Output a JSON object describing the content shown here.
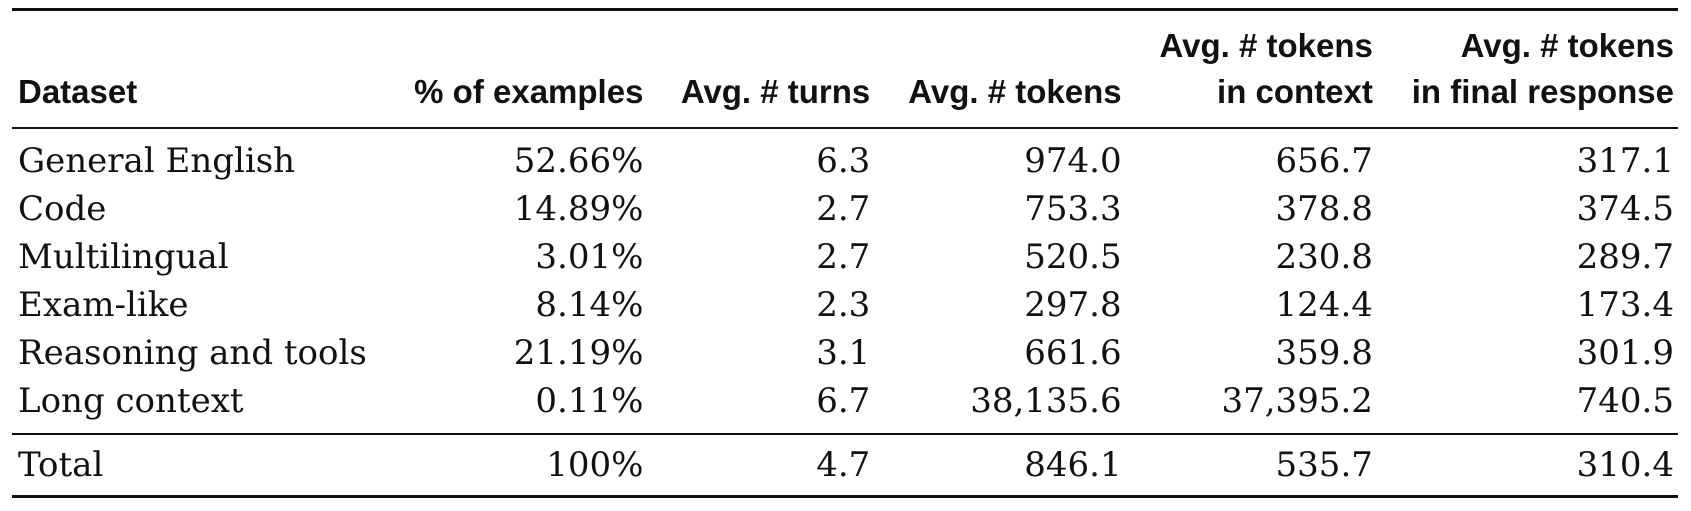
{
  "headers": {
    "dataset": "Dataset",
    "pct_examples": "% of examples",
    "avg_turns": "Avg. # turns",
    "avg_tokens": "Avg. # tokens",
    "avg_tokens_context": [
      "Avg. # tokens",
      "in context"
    ],
    "avg_tokens_final": [
      "Avg. # tokens",
      "in final response"
    ]
  },
  "rows": [
    {
      "dataset": "General English",
      "pct": "52.66%",
      "turns": "6.3",
      "tokens": "974.0",
      "context": "656.7",
      "final": "317.1"
    },
    {
      "dataset": "Code",
      "pct": "14.89%",
      "turns": "2.7",
      "tokens": "753.3",
      "context": "378.8",
      "final": "374.5"
    },
    {
      "dataset": "Multilingual",
      "pct": "3.01%",
      "turns": "2.7",
      "tokens": "520.5",
      "context": "230.8",
      "final": "289.7"
    },
    {
      "dataset": "Exam-like",
      "pct": "8.14%",
      "turns": "2.3",
      "tokens": "297.8",
      "context": "124.4",
      "final": "173.4"
    },
    {
      "dataset": "Reasoning and tools",
      "pct": "21.19%",
      "turns": "3.1",
      "tokens": "661.6",
      "context": "359.8",
      "final": "301.9"
    },
    {
      "dataset": "Long context",
      "pct": "0.11%",
      "turns": "6.7",
      "tokens": "38,135.6",
      "context": "37,395.2",
      "final": "740.5"
    }
  ],
  "total": {
    "dataset": "Total",
    "pct": "100%",
    "turns": "4.7",
    "tokens": "846.1",
    "context": "535.7",
    "final": "310.4"
  }
}
